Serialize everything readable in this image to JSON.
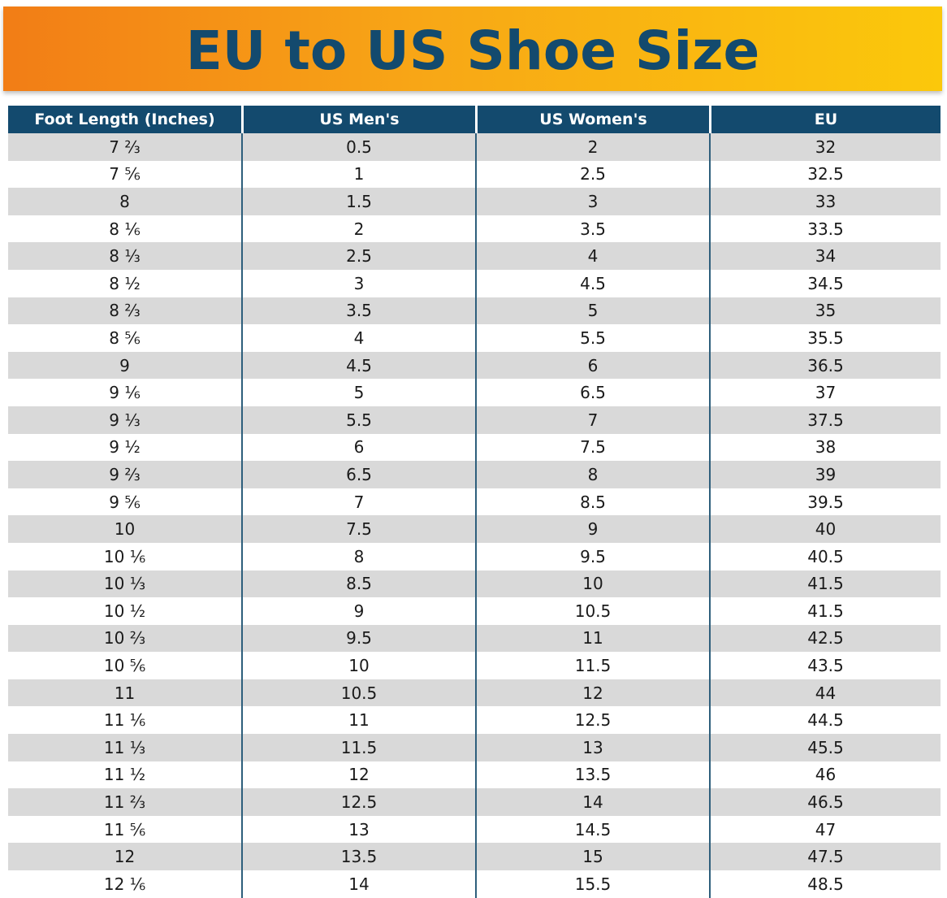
{
  "title": "EU to US Shoe Size",
  "colors": {
    "header_bg": "#134a6e",
    "title_text": "#134a6e",
    "banner_gradient_start": "#f27d16",
    "banner_gradient_end": "#fbc80b",
    "stripe": "#d9d9d9"
  },
  "table": {
    "headers": [
      "Foot Length (Inches)",
      "US Men's",
      "US Women's",
      "EU"
    ],
    "rows": [
      [
        "7 ⅔",
        "0.5",
        "2",
        "32"
      ],
      [
        "7 ⅚",
        "1",
        "2.5",
        "32.5"
      ],
      [
        "8",
        "1.5",
        "3",
        "33"
      ],
      [
        "8 ⅙",
        "2",
        "3.5",
        "33.5"
      ],
      [
        "8 ⅓",
        "2.5",
        "4",
        "34"
      ],
      [
        "8 ½",
        "3",
        "4.5",
        "34.5"
      ],
      [
        "8 ⅔",
        "3.5",
        "5",
        "35"
      ],
      [
        "8 ⅚",
        "4",
        "5.5",
        "35.5"
      ],
      [
        "9",
        "4.5",
        "6",
        "36.5"
      ],
      [
        "9 ⅙",
        "5",
        "6.5",
        "37"
      ],
      [
        "9 ⅓",
        "5.5",
        "7",
        "37.5"
      ],
      [
        "9 ½",
        "6",
        "7.5",
        "38"
      ],
      [
        "9 ⅔",
        "6.5",
        "8",
        "39"
      ],
      [
        "9 ⅚",
        "7",
        "8.5",
        "39.5"
      ],
      [
        "10",
        "7.5",
        "9",
        "40"
      ],
      [
        "10 ⅙",
        "8",
        "9.5",
        "40.5"
      ],
      [
        "10 ⅓",
        "8.5",
        "10",
        "41.5"
      ],
      [
        "10 ½",
        "9",
        "10.5",
        "41.5"
      ],
      [
        "10 ⅔",
        "9.5",
        "11",
        "42.5"
      ],
      [
        "10 ⅚",
        "10",
        "11.5",
        "43.5"
      ],
      [
        "11",
        "10.5",
        "12",
        "44"
      ],
      [
        "11 ⅙",
        "11",
        "12.5",
        "44.5"
      ],
      [
        "11 ⅓",
        "11.5",
        "13",
        "45.5"
      ],
      [
        "11 ½",
        "12",
        "13.5",
        "46"
      ],
      [
        "11 ⅔",
        "12.5",
        "14",
        "46.5"
      ],
      [
        "11 ⅚",
        "13",
        "14.5",
        "47"
      ],
      [
        "12",
        "13.5",
        "15",
        "47.5"
      ],
      [
        "12 ⅙",
        "14",
        "15.5",
        "48.5"
      ]
    ]
  }
}
